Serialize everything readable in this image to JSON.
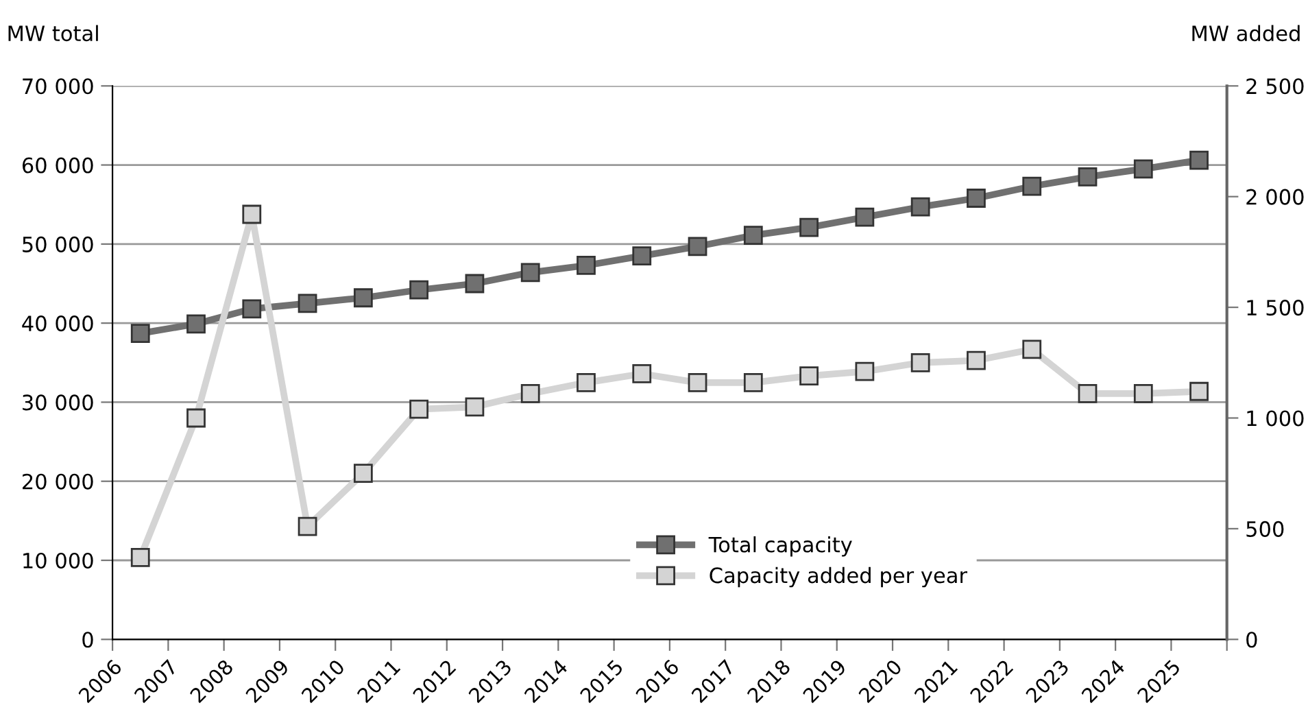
{
  "chart_data": {
    "type": "line",
    "ylabel": "MW total",
    "y2label": "MW added",
    "xlim": [
      2006,
      2026
    ],
    "xticks": [
      2006,
      2007,
      2008,
      2009,
      2010,
      2011,
      2012,
      2013,
      2014,
      2015,
      2016,
      2017,
      2018,
      2019,
      2020,
      2021,
      2022,
      2023,
      2024,
      2025,
      {
        "value": 2026,
        "label": null
      }
    ],
    "ylim": [
      0,
      70000
    ],
    "yticks": [
      {
        "value": 0,
        "label": "0"
      },
      {
        "value": 10000,
        "label": "10 000"
      },
      {
        "value": 20000,
        "label": "20 000"
      },
      {
        "value": 30000,
        "label": "30 000"
      },
      {
        "value": 40000,
        "label": "40 000"
      },
      {
        "value": 50000,
        "label": "50 000"
      },
      {
        "value": 60000,
        "label": "60 000"
      },
      {
        "value": 70000,
        "label": "70 000"
      }
    ],
    "y2lim": [
      0,
      2500
    ],
    "y2ticks": [
      {
        "value": 0,
        "label": "0"
      },
      {
        "value": 500,
        "label": "500"
      },
      {
        "value": 1000,
        "label": "1 000"
      },
      {
        "value": 1500,
        "label": "1 500"
      },
      {
        "value": 2000,
        "label": "2 000"
      },
      {
        "value": 2500,
        "label": "2 500"
      }
    ],
    "x": [
      2006.5,
      2007.5,
      2008.5,
      2009.5,
      2010.5,
      2011.5,
      2012.5,
      2013.5,
      2014.5,
      2015.5,
      2016.5,
      2017.5,
      2018.5,
      2019.5,
      2020.5,
      2021.5,
      2022.5,
      2023.5,
      2024.5,
      2025.5
    ],
    "series": [
      {
        "name": "Total capacity",
        "color": "#707070",
        "values": [
          38700,
          39900,
          41800,
          42500,
          43200,
          44200,
          45000,
          46400,
          47300,
          48500,
          49700,
          51100,
          52100,
          53400,
          54700,
          55800,
          57300,
          58500,
          59500,
          60600
        ]
      },
      {
        "name": "Capacity added per year",
        "color": "#d4d4d4",
        "axis": "y2",
        "values": [
          370,
          1000,
          1920,
          510,
          750,
          1040,
          1050,
          1110,
          1160,
          1200,
          1160,
          1160,
          1190,
          1210,
          1250,
          1260,
          1310,
          1110,
          1110,
          1120
        ]
      }
    ],
    "marker": "square",
    "line_style": "solid",
    "grid": "y",
    "legend": "bottom"
  }
}
